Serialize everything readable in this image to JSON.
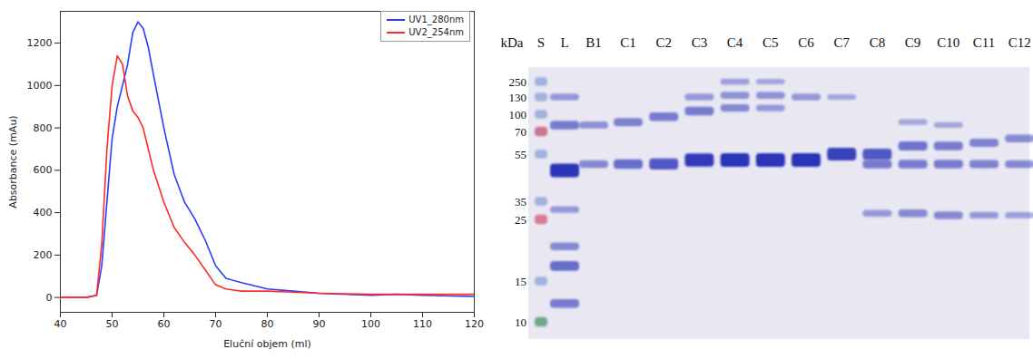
{
  "chart_data": {
    "type": "line",
    "x_label": "Eluční objem (ml)",
    "y_label": "Absorbance (mAu)",
    "x": [
      40,
      45,
      47,
      48,
      49,
      50,
      51,
      52,
      53,
      54,
      55,
      56,
      57,
      58,
      60,
      62,
      64,
      66,
      68,
      70,
      72,
      75,
      80,
      85,
      90,
      100,
      105,
      110,
      120
    ],
    "series": [
      {
        "name": "UV1_280nm",
        "color": "#2a3cff",
        "values": [
          0,
          0,
          10,
          150,
          450,
          750,
          900,
          1000,
          1100,
          1250,
          1300,
          1270,
          1180,
          1050,
          800,
          580,
          450,
          370,
          270,
          150,
          90,
          70,
          40,
          30,
          20,
          10,
          15,
          10,
          5
        ]
      },
      {
        "name": "UV2_254nm",
        "color": "#ff2a2a",
        "values": [
          0,
          0,
          10,
          250,
          700,
          1000,
          1140,
          1100,
          950,
          880,
          850,
          800,
          700,
          600,
          450,
          330,
          260,
          200,
          130,
          60,
          40,
          30,
          30,
          25,
          20,
          15,
          15,
          15,
          15
        ]
      }
    ],
    "xlim": [
      40,
      120
    ],
    "xticks": [
      40,
      50,
      60,
      70,
      80,
      90,
      100,
      110,
      120
    ],
    "ylim": [
      -70,
      1350
    ],
    "yticks": [
      0,
      200,
      400,
      600,
      800,
      1000,
      1200
    ],
    "legend": "upper right",
    "grid": false
  },
  "gel": {
    "unit_label": "kDa",
    "band_color": "#2b35b8",
    "markers": [
      {
        "kDa": 250,
        "color": "#6f8fd0"
      },
      {
        "kDa": 130,
        "color": "#6f8fd0"
      },
      {
        "kDa": 100,
        "color": "#6f8fd0"
      },
      {
        "kDa": 70,
        "color": "#c04060"
      },
      {
        "kDa": 55,
        "color": "#6f8fd0"
      },
      {
        "kDa": 35,
        "color": "#6f8fd0"
      },
      {
        "kDa": 25,
        "color": "#d04a6a"
      },
      {
        "kDa": 15,
        "color": "#6f8fd0"
      },
      {
        "kDa": 10,
        "color": "#3a8a5a"
      }
    ],
    "lanes": [
      {
        "name": "S",
        "bands": [
          {
            "kDa": 250,
            "amount": 0.5
          },
          {
            "kDa": 130,
            "amount": 0.5
          },
          {
            "kDa": 100,
            "amount": 0.5
          },
          {
            "kDa": 70,
            "amount": 0.6
          },
          {
            "kDa": 55,
            "amount": 0.5
          },
          {
            "kDa": 35,
            "amount": 0.5
          },
          {
            "kDa": 25,
            "amount": 0.6
          },
          {
            "kDa": 15,
            "amount": 0.5
          },
          {
            "kDa": 10,
            "amount": 0.6
          }
        ]
      },
      {
        "name": "L",
        "bands": [
          {
            "kDa": 130,
            "amount": 0.3
          },
          {
            "kDa": 80,
            "amount": 0.5
          },
          {
            "kDa": 47,
            "amount": 1.0
          },
          {
            "kDa": 30,
            "amount": 0.3
          },
          {
            "kDa": 20,
            "amount": 0.4
          },
          {
            "kDa": 17,
            "amount": 0.6
          },
          {
            "kDa": 12,
            "amount": 0.5
          }
        ]
      },
      {
        "name": "B1",
        "bands": [
          {
            "kDa": 80,
            "amount": 0.35
          },
          {
            "kDa": 50,
            "amount": 0.4
          }
        ]
      },
      {
        "name": "C1",
        "bands": [
          {
            "kDa": 85,
            "amount": 0.45
          },
          {
            "kDa": 50,
            "amount": 0.6
          }
        ]
      },
      {
        "name": "C2",
        "bands": [
          {
            "kDa": 95,
            "amount": 0.5
          },
          {
            "kDa": 50,
            "amount": 0.75
          }
        ]
      },
      {
        "name": "C3",
        "bands": [
          {
            "kDa": 130,
            "amount": 0.3
          },
          {
            "kDa": 105,
            "amount": 0.5
          },
          {
            "kDa": 52,
            "amount": 0.95
          }
        ]
      },
      {
        "name": "C4",
        "bands": [
          {
            "kDa": 250,
            "amount": 0.25
          },
          {
            "kDa": 140,
            "amount": 0.35
          },
          {
            "kDa": 110,
            "amount": 0.4
          },
          {
            "kDa": 52,
            "amount": 1.0
          }
        ]
      },
      {
        "name": "C5",
        "bands": [
          {
            "kDa": 250,
            "amount": 0.2
          },
          {
            "kDa": 140,
            "amount": 0.35
          },
          {
            "kDa": 110,
            "amount": 0.3
          },
          {
            "kDa": 52,
            "amount": 1.0
          }
        ]
      },
      {
        "name": "C6",
        "bands": [
          {
            "kDa": 130,
            "amount": 0.3
          },
          {
            "kDa": 52,
            "amount": 1.0
          }
        ]
      },
      {
        "name": "C7",
        "bands": [
          {
            "kDa": 130,
            "amount": 0.2
          },
          {
            "kDa": 55,
            "amount": 0.9
          }
        ]
      },
      {
        "name": "C8",
        "bands": [
          {
            "kDa": 55,
            "amount": 0.75
          },
          {
            "kDa": 50,
            "amount": 0.5
          },
          {
            "kDa": 28,
            "amount": 0.3
          }
        ]
      },
      {
        "name": "C9",
        "bands": [
          {
            "kDa": 85,
            "amount": 0.2
          },
          {
            "kDa": 60,
            "amount": 0.55
          },
          {
            "kDa": 50,
            "amount": 0.5
          },
          {
            "kDa": 28,
            "amount": 0.4
          }
        ]
      },
      {
        "name": "C10",
        "bands": [
          {
            "kDa": 80,
            "amount": 0.2
          },
          {
            "kDa": 60,
            "amount": 0.5
          },
          {
            "kDa": 50,
            "amount": 0.5
          },
          {
            "kDa": 27,
            "amount": 0.4
          }
        ]
      },
      {
        "name": "C11",
        "bands": [
          {
            "kDa": 62,
            "amount": 0.45
          },
          {
            "kDa": 50,
            "amount": 0.45
          },
          {
            "kDa": 27,
            "amount": 0.3
          }
        ]
      },
      {
        "name": "C12",
        "bands": [
          {
            "kDa": 65,
            "amount": 0.4
          },
          {
            "kDa": 50,
            "amount": 0.4
          },
          {
            "kDa": 27,
            "amount": 0.25
          }
        ]
      }
    ]
  }
}
